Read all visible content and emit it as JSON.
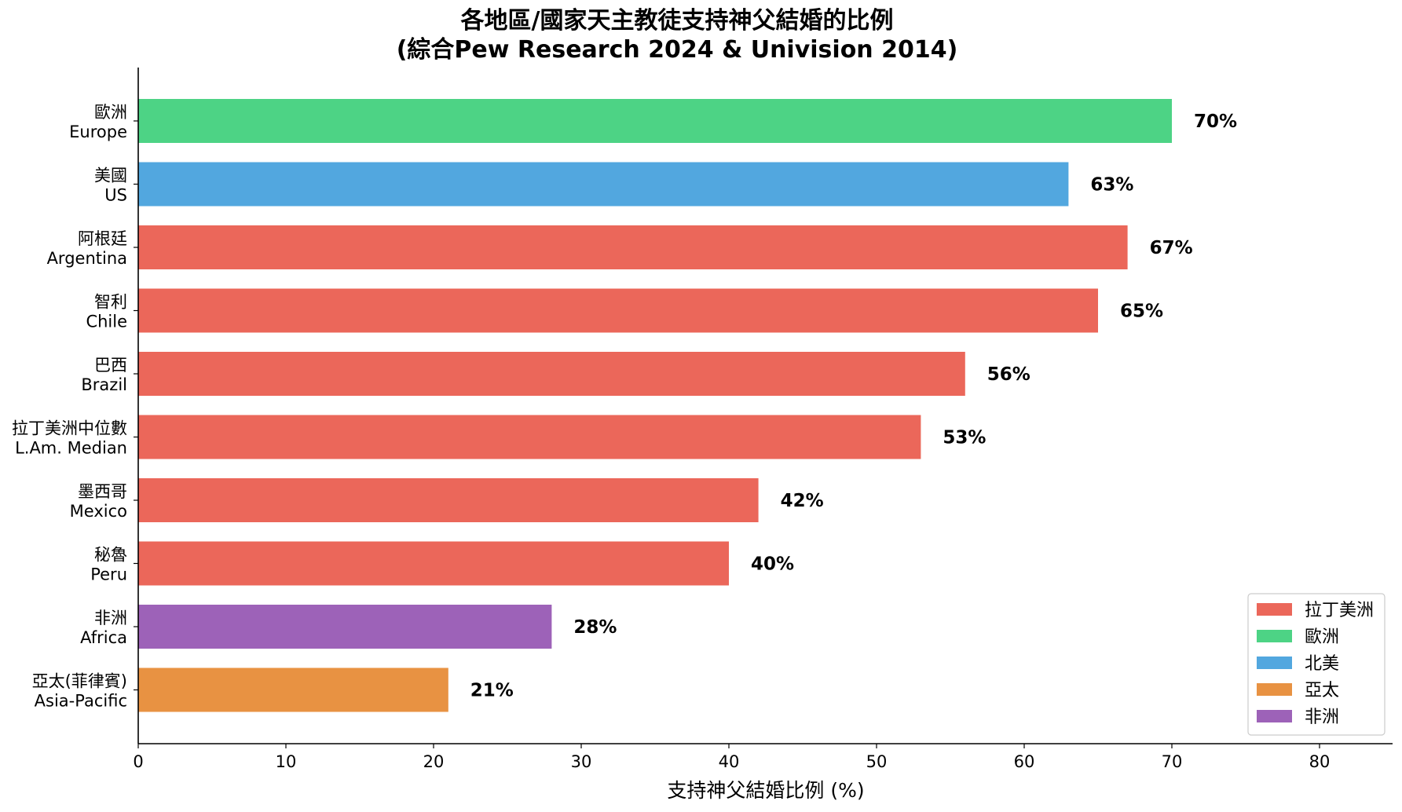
{
  "chart_data": {
    "type": "bar",
    "orientation": "horizontal",
    "title": "各地區/國家天主教徒支持神父結婚的比例",
    "subtitle": "(綜合Pew Research 2024 & Univision 2014)",
    "xlabel": "支持神父結婚比例 (%)",
    "ylabel": "",
    "xlim": [
      0,
      85
    ],
    "xticks": [
      0,
      10,
      20,
      30,
      40,
      50,
      60,
      70,
      80
    ],
    "grid": false,
    "legend_position": "bottom-right",
    "categories": [
      {
        "zh": "歐洲",
        "en": "Europe"
      },
      {
        "zh": "美國",
        "en": "US"
      },
      {
        "zh": "阿根廷",
        "en": "Argentina"
      },
      {
        "zh": "智利",
        "en": "Chile"
      },
      {
        "zh": "巴西",
        "en": "Brazil"
      },
      {
        "zh": "拉丁美洲中位數",
        "en": "L.Am. Median"
      },
      {
        "zh": "墨西哥",
        "en": "Mexico"
      },
      {
        "zh": "秘魯",
        "en": "Peru"
      },
      {
        "zh": "非洲",
        "en": "Africa"
      },
      {
        "zh": "亞太(菲律賓)",
        "en": "Asia-Pacific"
      }
    ],
    "values": [
      70,
      63,
      67,
      65,
      56,
      53,
      42,
      40,
      28,
      21
    ],
    "value_labels": [
      "70%",
      "63%",
      "67%",
      "65%",
      "56%",
      "53%",
      "42%",
      "40%",
      "28%",
      "21%"
    ],
    "bar_groups": [
      "europe",
      "north_america",
      "latin_america",
      "latin_america",
      "latin_america",
      "latin_america",
      "latin_america",
      "latin_america",
      "africa",
      "asia_pacific"
    ],
    "legend": [
      {
        "key": "latin_america",
        "label": "拉丁美洲",
        "color": "#eb675a"
      },
      {
        "key": "europe",
        "label": "歐洲",
        "color": "#4dd385"
      },
      {
        "key": "north_america",
        "label": "北美",
        "color": "#52a7df"
      },
      {
        "key": "asia_pacific",
        "label": "亞太",
        "color": "#e89242"
      },
      {
        "key": "africa",
        "label": "非洲",
        "color": "#9d62b8"
      }
    ]
  }
}
